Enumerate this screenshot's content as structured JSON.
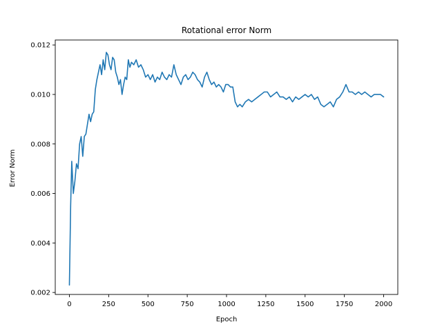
{
  "chart_data": {
    "type": "line",
    "title": "Rotational error Norm",
    "xlabel": "Epoch",
    "ylabel": "Error Norm",
    "xlim": [
      -90,
      2090
    ],
    "ylim": [
      0.00192,
      0.0122
    ],
    "xticks": [
      0,
      250,
      500,
      750,
      1000,
      1250,
      1500,
      1750,
      2000
    ],
    "xtick_labels": [
      "0",
      "250",
      "500",
      "750",
      "1000",
      "1250",
      "1500",
      "1750",
      "2000"
    ],
    "yticks": [
      0.002,
      0.004,
      0.006,
      0.008,
      0.01,
      0.012
    ],
    "ytick_labels": [
      "0.002",
      "0.004",
      "0.006",
      "0.008",
      "0.010",
      "0.012"
    ],
    "grid": false,
    "legend": "none",
    "series": [
      {
        "color": "#1f77b4",
        "x": [
          0,
          8,
          15,
          25,
          35,
          45,
          55,
          65,
          75,
          85,
          95,
          105,
          115,
          125,
          135,
          145,
          155,
          165,
          175,
          185,
          195,
          205,
          215,
          225,
          235,
          245,
          255,
          265,
          275,
          285,
          295,
          305,
          315,
          325,
          335,
          345,
          355,
          365,
          375,
          385,
          395,
          410,
          425,
          440,
          455,
          470,
          485,
          500,
          515,
          530,
          545,
          560,
          575,
          590,
          605,
          620,
          635,
          650,
          665,
          680,
          695,
          710,
          725,
          740,
          755,
          770,
          785,
          800,
          815,
          830,
          845,
          860,
          875,
          890,
          905,
          920,
          935,
          950,
          965,
          980,
          995,
          1010,
          1025,
          1040,
          1055,
          1070,
          1085,
          1100,
          1120,
          1140,
          1160,
          1180,
          1200,
          1220,
          1240,
          1260,
          1280,
          1300,
          1320,
          1340,
          1360,
          1380,
          1400,
          1420,
          1440,
          1460,
          1480,
          1500,
          1520,
          1540,
          1560,
          1580,
          1600,
          1620,
          1640,
          1660,
          1680,
          1700,
          1720,
          1740,
          1760,
          1780,
          1800,
          1820,
          1840,
          1860,
          1880,
          1900,
          1920,
          1940,
          1960,
          1980,
          2000
        ],
        "y": [
          0.0023,
          0.0055,
          0.0073,
          0.006,
          0.0065,
          0.0072,
          0.007,
          0.008,
          0.0083,
          0.0075,
          0.0083,
          0.0084,
          0.0088,
          0.0092,
          0.0089,
          0.0092,
          0.0093,
          0.0102,
          0.0106,
          0.0109,
          0.0112,
          0.0108,
          0.0114,
          0.011,
          0.0117,
          0.0116,
          0.0112,
          0.011,
          0.0115,
          0.0114,
          0.0109,
          0.0107,
          0.0104,
          0.0106,
          0.01,
          0.0104,
          0.0107,
          0.0106,
          0.0114,
          0.0111,
          0.0113,
          0.0112,
          0.0114,
          0.0111,
          0.0112,
          0.011,
          0.0107,
          0.0108,
          0.0106,
          0.0108,
          0.0105,
          0.0107,
          0.0106,
          0.0109,
          0.0107,
          0.0106,
          0.0108,
          0.0107,
          0.0112,
          0.0108,
          0.0106,
          0.0104,
          0.0107,
          0.0108,
          0.0106,
          0.0107,
          0.0109,
          0.0108,
          0.0106,
          0.0105,
          0.0103,
          0.0107,
          0.0109,
          0.0106,
          0.0104,
          0.0105,
          0.0103,
          0.0104,
          0.0103,
          0.0101,
          0.0104,
          0.0104,
          0.0103,
          0.0103,
          0.0097,
          0.0095,
          0.0096,
          0.0095,
          0.0097,
          0.0098,
          0.0097,
          0.0098,
          0.0099,
          0.01,
          0.0101,
          0.0101,
          0.0099,
          0.01,
          0.0101,
          0.0099,
          0.0099,
          0.0098,
          0.0099,
          0.0097,
          0.0099,
          0.0098,
          0.0099,
          0.01,
          0.0099,
          0.01,
          0.0098,
          0.0099,
          0.0096,
          0.0095,
          0.0096,
          0.0097,
          0.0095,
          0.0098,
          0.0099,
          0.0101,
          0.0104,
          0.0101,
          0.0101,
          0.01,
          0.0101,
          0.01,
          0.0101,
          0.01,
          0.0099,
          0.01,
          0.01,
          0.01,
          0.0099
        ]
      }
    ]
  }
}
